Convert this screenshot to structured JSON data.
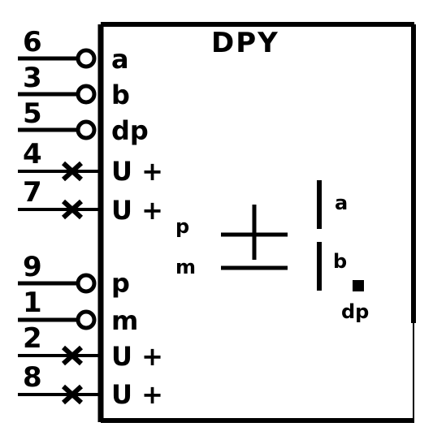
{
  "component": {
    "title": "DPY"
  },
  "pins": [
    {
      "number": "6",
      "label": "a",
      "terminal": "inverting-circle"
    },
    {
      "number": "3",
      "label": "b",
      "terminal": "inverting-circle"
    },
    {
      "number": "5",
      "label": "dp",
      "terminal": "inverting-circle"
    },
    {
      "number": "4",
      "label": "U +",
      "terminal": "no-connect-cross"
    },
    {
      "number": "7",
      "label": "U +",
      "terminal": "no-connect-cross"
    },
    {
      "number": "9",
      "label": "p",
      "terminal": "inverting-circle"
    },
    {
      "number": "1",
      "label": "m",
      "terminal": "inverting-circle"
    },
    {
      "number": "2",
      "label": "U +",
      "terminal": "no-connect-cross"
    },
    {
      "number": "8",
      "label": "U +",
      "terminal": "no-connect-cross"
    }
  ],
  "display": {
    "p_label": "p",
    "m_label": "m",
    "a_label": "a",
    "b_label": "b",
    "dp_label": "dp"
  }
}
